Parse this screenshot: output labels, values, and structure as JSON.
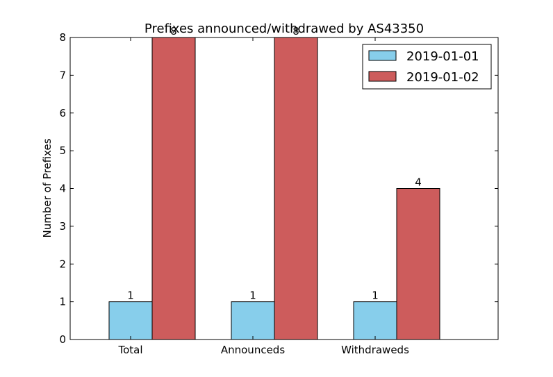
{
  "chart_data": {
    "type": "bar",
    "title": "Prefixes announced/withdrawed by AS43350",
    "xlabel": "",
    "ylabel": "Number of Prefixes",
    "categories": [
      "Total",
      "Announceds",
      "Withdraweds"
    ],
    "series": [
      {
        "name": "2019-01-01",
        "values": [
          1,
          1,
          1
        ],
        "color": "#87ceeb"
      },
      {
        "name": "2019-01-02",
        "values": [
          8,
          8,
          4
        ],
        "color": "#cd5c5c"
      }
    ],
    "ylim": [
      0,
      8
    ],
    "yticks": [
      "0",
      "1",
      "2",
      "3",
      "4",
      "5",
      "6",
      "7",
      "8"
    ],
    "grid": false,
    "legend": "top-right",
    "show_data_labels": true
  }
}
